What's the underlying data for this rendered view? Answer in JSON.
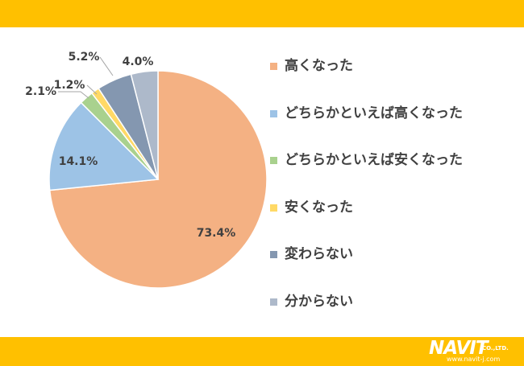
{
  "colors": {
    "band": "#FFC000",
    "label_text": "#404040",
    "slice_border": "#ffffff",
    "leader_line": "#A6A6A6"
  },
  "chart_data": {
    "type": "pie",
    "title": "",
    "start_angle_deg": 0,
    "direction": "clockwise",
    "slices": [
      {
        "label": "高くなった",
        "value": 73.4,
        "display": "73.4%",
        "color": "#F4B183"
      },
      {
        "label": "どちらかといえば高くなった",
        "value": 14.1,
        "display": "14.1%",
        "color": "#9DC3E6"
      },
      {
        "label": "どちらかといえば安くなった",
        "value": 2.1,
        "display": "2.1%",
        "color": "#A9D18E"
      },
      {
        "label": "安くなった",
        "value": 1.2,
        "display": "1.2%",
        "color": "#FFD966"
      },
      {
        "label": "変わらない",
        "value": 5.2,
        "display": "5.2%",
        "color": "#8497B0"
      },
      {
        "label": "分からない",
        "value": 4.0,
        "display": "4.0%",
        "color": "#ADB9CA"
      }
    ],
    "legend_position": "right"
  },
  "logo": {
    "main": "NAVIT",
    "suffix": "CO.,LTD.",
    "url": "www.navit-j.com"
  }
}
